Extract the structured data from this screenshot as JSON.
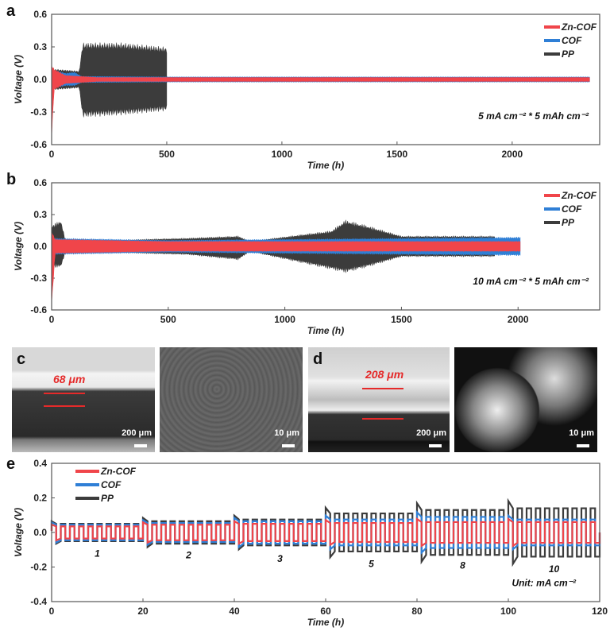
{
  "colors": {
    "Zn-COF": "#f0454a",
    "COF": "#2f7fd6",
    "PP": "#3c3c3c"
  },
  "chart_data": [
    {
      "panel": "a",
      "type": "line",
      "xlabel": "Time (h)",
      "ylabel": "Voltage (V)",
      "xlim": [
        0,
        2380
      ],
      "ylim": [
        -0.6,
        0.6
      ],
      "xticks": [
        0,
        500,
        1000,
        1500,
        2000
      ],
      "yticks": [
        "0.6",
        "0.3",
        "0.0",
        "-0.3",
        "-0.6"
      ],
      "legend": [
        "Zn-COF",
        "COF",
        "PP"
      ],
      "legend_position": "top-right",
      "annotation": "5 mA cm⁻² * 5 mAh cm⁻²",
      "series": [
        {
          "name": "PP",
          "envelope": [
            [
              0,
              0.1,
              -0.1
            ],
            [
              120,
              0.08,
              -0.08
            ],
            [
              135,
              0.34,
              -0.35
            ],
            [
              300,
              0.34,
              -0.33
            ],
            [
              500,
              0.3,
              -0.29
            ]
          ]
        },
        {
          "name": "COF",
          "envelope": [
            [
              0,
              0.1,
              -0.09
            ],
            [
              60,
              0.06,
              -0.06
            ],
            [
              100,
              0.07,
              -0.06
            ],
            [
              130,
              0.03,
              -0.03
            ],
            [
              500,
              0.025,
              -0.025
            ],
            [
              2340,
              0.025,
              -0.025
            ]
          ]
        },
        {
          "name": "Zn-COF",
          "envelope": [
            [
              0,
              0.14,
              -0.6
            ],
            [
              10,
              0.1,
              -0.1
            ],
            [
              60,
              0.04,
              -0.04
            ],
            [
              200,
              0.02,
              -0.02
            ],
            [
              2340,
              0.02,
              -0.02
            ]
          ]
        }
      ]
    },
    {
      "panel": "b",
      "type": "line",
      "xlabel": "Time (h)",
      "ylabel": "Voltage (V)",
      "xlim": [
        0,
        2350
      ],
      "ylim": [
        -0.6,
        0.6
      ],
      "xticks": [
        0,
        500,
        1000,
        1500,
        2000
      ],
      "yticks": [
        "0.6",
        "0.3",
        "0.0",
        "-0.3",
        "-0.6"
      ],
      "legend": [
        "Zn-COF",
        "COF",
        "PP"
      ],
      "legend_position": "top-right",
      "annotation": "10 mA cm⁻² * 5 mAh cm⁻²",
      "series": [
        {
          "name": "PP",
          "envelope": [
            [
              0,
              0.2,
              -0.2
            ],
            [
              40,
              0.25,
              -0.2
            ],
            [
              60,
              0.05,
              -0.05
            ],
            [
              580,
              0.08,
              -0.08
            ],
            [
              800,
              0.1,
              -0.13
            ],
            [
              850,
              0.05,
              -0.05
            ],
            [
              1200,
              0.15,
              -0.22
            ],
            [
              1260,
              0.25,
              -0.25
            ],
            [
              1350,
              0.2,
              -0.2
            ],
            [
              1500,
              0.1,
              -0.1
            ],
            [
              1900,
              0.1,
              -0.1
            ]
          ]
        },
        {
          "name": "COF",
          "envelope": [
            [
              0,
              0.08,
              -0.08
            ],
            [
              500,
              0.06,
              -0.06
            ],
            [
              1000,
              0.07,
              -0.07
            ],
            [
              2010,
              0.09,
              -0.09
            ]
          ]
        },
        {
          "name": "Zn-COF",
          "envelope": [
            [
              0,
              0.15,
              -0.6
            ],
            [
              15,
              0.07,
              -0.07
            ],
            [
              500,
              0.05,
              -0.05
            ],
            [
              2010,
              0.05,
              -0.05
            ]
          ]
        }
      ]
    },
    {
      "panel": "e",
      "type": "line",
      "xlabel": "Time (h)",
      "ylabel": "Voltage (V)",
      "xlim": [
        0,
        120
      ],
      "ylim": [
        -0.4,
        0.4
      ],
      "xticks": [
        0,
        20,
        40,
        60,
        80,
        100,
        120
      ],
      "yticks": [
        "0.4",
        "0.2",
        "0.0",
        "-0.2",
        "-0.4"
      ],
      "legend": [
        "Zn-COF",
        "COF",
        "PP"
      ],
      "legend_position": "top-left",
      "unit_label": "Unit: mA cm⁻²",
      "current_labels": [
        "1",
        "2",
        "3",
        "5",
        "8",
        "10"
      ],
      "segments": [
        {
          "current": 1,
          "t": [
            0,
            20
          ],
          "amp": {
            "Zn-COF": 0.035,
            "COF": 0.045,
            "PP": 0.05
          }
        },
        {
          "current": 2,
          "t": [
            20,
            40
          ],
          "amp": {
            "Zn-COF": 0.045,
            "COF": 0.055,
            "PP": 0.065
          }
        },
        {
          "current": 3,
          "t": [
            40,
            60
          ],
          "amp": {
            "Zn-COF": 0.05,
            "COF": 0.065,
            "PP": 0.075
          }
        },
        {
          "current": 5,
          "t": [
            60,
            80
          ],
          "amp": {
            "Zn-COF": 0.055,
            "COF": 0.075,
            "PP": 0.11
          }
        },
        {
          "current": 8,
          "t": [
            80,
            100
          ],
          "amp": {
            "Zn-COF": 0.06,
            "COF": 0.09,
            "PP": 0.13
          }
        },
        {
          "current": 10,
          "t": [
            100,
            120
          ],
          "amp": {
            "Zn-COF": 0.06,
            "COF": 0.075,
            "PP": 0.14
          }
        }
      ]
    }
  ],
  "images": {
    "c": {
      "label": "c",
      "measure": "68 μm",
      "scale_left": "200 μm",
      "scale_right": "10 μm"
    },
    "d": {
      "label": "d",
      "measure": "208 μm",
      "scale_left": "200 μm",
      "scale_right": "10 μm"
    }
  }
}
